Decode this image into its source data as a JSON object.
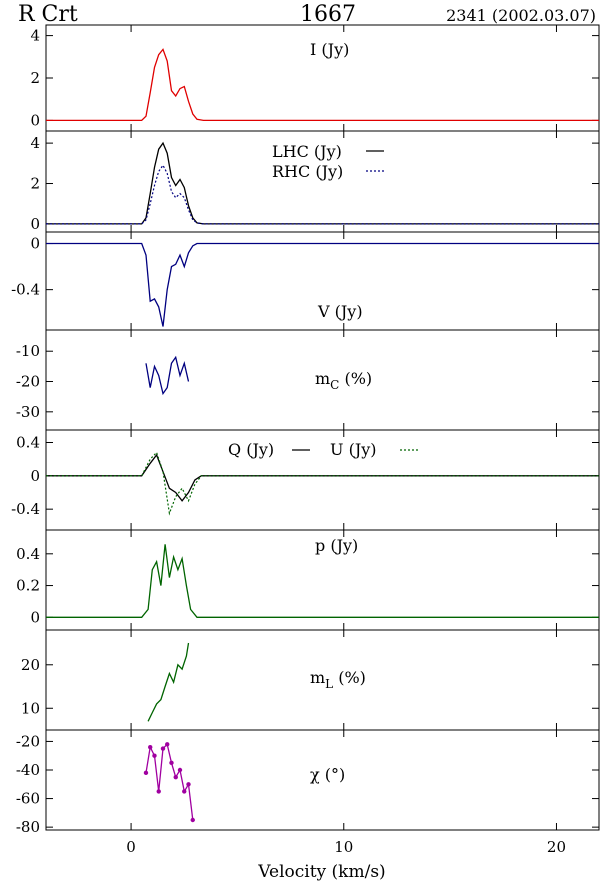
{
  "header": {
    "star": "R Crt",
    "line": "1667",
    "epoch": "2341 (2002.03.07)"
  },
  "xaxis": {
    "label": "Velocity (km/s)",
    "range": [
      -4,
      22
    ],
    "ticks": [
      0,
      10,
      20
    ],
    "tick_labels": [
      "0",
      "10",
      "20"
    ]
  },
  "colors": {
    "red": "#e00000",
    "black": "#000000",
    "blue": "#000080",
    "green": "#006400",
    "purple": "#a000a0"
  },
  "chart_data": [
    {
      "id": "I",
      "type": "line",
      "title": "I (Jy)",
      "ylim": [
        -0.5,
        4.5
      ],
      "yticks": [
        0,
        2,
        4
      ],
      "ytick_labels": [
        "0",
        "2",
        "4"
      ],
      "series": [
        {
          "name": "I (Jy)",
          "color": "#e00000",
          "style": "solid",
          "x": [
            -4,
            0.5,
            0.7,
            0.9,
            1.1,
            1.3,
            1.5,
            1.7,
            1.9,
            2.1,
            2.3,
            2.5,
            2.7,
            2.9,
            3.1,
            3.4,
            22
          ],
          "y": [
            0,
            0,
            0.2,
            1.3,
            2.5,
            3.1,
            3.35,
            2.8,
            1.4,
            1.15,
            1.5,
            1.6,
            0.9,
            0.3,
            0.05,
            0,
            0
          ]
        }
      ]
    },
    {
      "id": "LR",
      "type": "line",
      "ylim": [
        -0.4,
        4.6
      ],
      "yticks": [
        0,
        2,
        4
      ],
      "ytick_labels": [
        "0",
        "2",
        "4"
      ],
      "series": [
        {
          "name": "LHC (Jy)",
          "color": "#000000",
          "style": "solid",
          "x": [
            -4,
            0.5,
            0.7,
            0.9,
            1.1,
            1.3,
            1.5,
            1.7,
            1.9,
            2.1,
            2.3,
            2.5,
            2.7,
            2.9,
            3.1,
            3.4,
            22
          ],
          "y": [
            0,
            0,
            0.3,
            1.5,
            2.8,
            3.7,
            4.0,
            3.5,
            2.3,
            1.9,
            2.2,
            1.8,
            0.9,
            0.3,
            0.05,
            0,
            0
          ]
        },
        {
          "name": "RHC (Jy)",
          "color": "#000080",
          "style": "dotted",
          "x": [
            -4,
            0.5,
            0.7,
            0.9,
            1.1,
            1.3,
            1.5,
            1.7,
            1.9,
            2.1,
            2.3,
            2.5,
            2.7,
            2.9,
            3.1,
            3.4,
            22
          ],
          "y": [
            0,
            0,
            0.2,
            1.0,
            1.9,
            2.6,
            2.9,
            2.5,
            1.6,
            1.3,
            1.5,
            1.3,
            0.7,
            0.2,
            0.05,
            0,
            0
          ]
        }
      ]
    },
    {
      "id": "V",
      "type": "line",
      "title": "V (Jy)",
      "ylim": [
        -0.75,
        0.1
      ],
      "yticks": [
        0,
        -0.4
      ],
      "ytick_labels": [
        "0",
        "-0.4"
      ],
      "series": [
        {
          "name": "V (Jy)",
          "color": "#000080",
          "style": "solid",
          "x": [
            -4,
            0.5,
            0.7,
            0.9,
            1.1,
            1.3,
            1.5,
            1.7,
            1.9,
            2.1,
            2.3,
            2.5,
            2.7,
            2.9,
            3.1,
            3.4,
            22
          ],
          "y": [
            0,
            0,
            -0.1,
            -0.5,
            -0.48,
            -0.55,
            -0.72,
            -0.4,
            -0.2,
            -0.18,
            -0.1,
            -0.2,
            -0.08,
            -0.02,
            0,
            0,
            0
          ]
        }
      ]
    },
    {
      "id": "mC",
      "type": "line",
      "title": "mC (%)",
      "ylim": [
        -36,
        -3
      ],
      "yticks": [
        -10,
        -20,
        -30
      ],
      "ytick_labels": [
        "-10",
        "-20",
        "-30"
      ],
      "series": [
        {
          "name": "mC (%)",
          "color": "#000080",
          "style": "solid",
          "x": [
            0.7,
            0.9,
            1.1,
            1.3,
            1.5,
            1.7,
            1.9,
            2.1,
            2.3,
            2.5,
            2.7
          ],
          "y": [
            -14,
            -22,
            -15,
            -18,
            -24,
            -22,
            -14,
            -12,
            -18,
            -14,
            -20
          ]
        }
      ]
    },
    {
      "id": "QU",
      "type": "line",
      "ylim": [
        -0.65,
        0.55
      ],
      "yticks": [
        0.4,
        0,
        -0.4
      ],
      "ytick_labels": [
        "0.4",
        "0",
        "-0.4"
      ],
      "series": [
        {
          "name": "Q (Jy)",
          "color": "#000000",
          "style": "solid",
          "x": [
            -4,
            0.5,
            0.9,
            1.2,
            1.5,
            1.8,
            2.1,
            2.4,
            2.7,
            3.0,
            3.3,
            22
          ],
          "y": [
            0,
            0,
            0.15,
            0.25,
            0.05,
            -0.15,
            -0.2,
            -0.3,
            -0.2,
            -0.05,
            0,
            0
          ]
        },
        {
          "name": "U (Jy)",
          "color": "#006400",
          "style": "dotted",
          "x": [
            -4,
            0.5,
            0.9,
            1.2,
            1.5,
            1.8,
            2.1,
            2.4,
            2.7,
            3.0,
            3.3,
            22
          ],
          "y": [
            0,
            0,
            0.2,
            0.28,
            0.05,
            -0.45,
            -0.25,
            -0.15,
            -0.3,
            -0.1,
            0,
            0
          ]
        }
      ]
    },
    {
      "id": "p",
      "type": "line",
      "title": "p (Jy)",
      "ylim": [
        -0.08,
        0.55
      ],
      "yticks": [
        0.4,
        0.2,
        0
      ],
      "ytick_labels": [
        "0.4",
        "0.2",
        "0"
      ],
      "series": [
        {
          "name": "p (Jy)",
          "color": "#006400",
          "style": "solid",
          "x": [
            -4,
            0.5,
            0.8,
            1.0,
            1.2,
            1.4,
            1.6,
            1.8,
            2.0,
            2.2,
            2.4,
            2.6,
            2.8,
            3.1,
            22
          ],
          "y": [
            0,
            0,
            0.05,
            0.3,
            0.35,
            0.2,
            0.46,
            0.25,
            0.38,
            0.3,
            0.37,
            0.2,
            0.05,
            0,
            0
          ]
        }
      ]
    },
    {
      "id": "mL",
      "type": "line",
      "title": "mL (%)",
      "ylim": [
        5,
        28
      ],
      "yticks": [
        20,
        10
      ],
      "ytick_labels": [
        "20",
        "10"
      ],
      "series": [
        {
          "name": "mL (%)",
          "color": "#006400",
          "style": "solid",
          "x": [
            0.8,
            1.0,
            1.2,
            1.4,
            1.6,
            1.8,
            2.0,
            2.2,
            2.4,
            2.6,
            2.7
          ],
          "y": [
            7,
            9,
            11,
            12,
            15,
            18,
            16,
            20,
            19,
            22,
            25
          ]
        }
      ]
    },
    {
      "id": "chi",
      "type": "scatter",
      "title": "χ (°)",
      "ylim": [
        -82,
        -12
      ],
      "yticks": [
        -20,
        -40,
        -60,
        -80
      ],
      "ytick_labels": [
        "-20",
        "-40",
        "-60",
        "-80"
      ],
      "series": [
        {
          "name": "χ (°)",
          "color": "#a000a0",
          "style": "solid",
          "x": [
            0.7,
            0.9,
            1.1,
            1.3,
            1.5,
            1.7,
            1.9,
            2.1,
            2.3,
            2.5,
            2.7,
            2.9
          ],
          "y": [
            -42,
            -24,
            -30,
            -55,
            -25,
            -22,
            -35,
            -45,
            -40,
            -55,
            -50,
            -75
          ]
        }
      ]
    }
  ]
}
